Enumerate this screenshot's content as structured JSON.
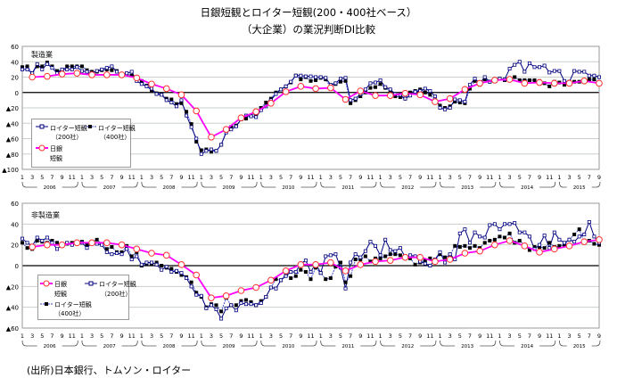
{
  "title_line1": "日銀短観とロイター短観(200・400社ベース）",
  "title_line2": "（大企業）の業況判断DI比較",
  "source": "(出所)日本銀行、トムソン・ロイター",
  "colors": {
    "reuters200": "#000080",
    "reuters400": "#000000",
    "reuters400_line": "#3040d0",
    "tankan": "#ff00ff",
    "tankan_marker": "#ff3030",
    "grid": "#c8d0c8"
  },
  "chart_data": [
    {
      "type": "line",
      "panel_label": "製造業",
      "ylim": [
        -100,
        60
      ],
      "yticks": [
        60,
        40,
        20,
        0,
        -20,
        -40,
        -60,
        -80,
        -100
      ],
      "ytick_labels": [
        "60",
        "40",
        "20",
        "0",
        "▲20",
        "▲40",
        "▲60",
        "▲80",
        "▲100"
      ],
      "legend": {
        "r200_a": "ロイター短観",
        "r200_b": "（200社）",
        "r400_a": "ロイター短観",
        "r400_b": "（400社）",
        "tankan_a": "日銀",
        "tankan_b": "短観"
      },
      "x_start": "2006-01",
      "x_end": "2015-09",
      "month_ticks": [
        "1",
        "3",
        "5",
        "7",
        "9",
        "11"
      ],
      "years": [
        "2006",
        "2007",
        "2008",
        "2009",
        "2010",
        "2011",
        "2012",
        "2013",
        "2014",
        "2015"
      ],
      "series": [
        {
          "name": "ロイター短観（200社）",
          "frequency": "monthly",
          "values": [
            30,
            30,
            25,
            37,
            30,
            37,
            32,
            25,
            30,
            30,
            30,
            33,
            28,
            27,
            25,
            28,
            30,
            32,
            34,
            27,
            22,
            25,
            27,
            15,
            11,
            8,
            5,
            -2,
            -3,
            -10,
            -13,
            -18,
            -10,
            -30,
            -45,
            -60,
            -80,
            -76,
            -74,
            -76,
            -68,
            -52,
            -48,
            -44,
            -35,
            -30,
            -31,
            -32,
            -23,
            -18,
            -10,
            -2,
            4,
            8,
            14,
            22,
            22,
            21,
            21,
            20,
            20,
            19,
            10,
            12,
            18,
            19,
            -10,
            -8,
            -2,
            4,
            12,
            13,
            16,
            7,
            4,
            -2,
            -3,
            -8,
            -4,
            1,
            2,
            5,
            2,
            -5,
            -20,
            -22,
            -20,
            -9,
            -10,
            -12,
            10,
            18,
            12,
            20,
            14,
            16,
            18,
            17,
            31,
            36,
            40,
            27,
            38,
            33,
            33,
            35,
            26,
            28,
            28,
            15,
            14,
            28,
            27,
            27,
            22,
            22,
            20
          ]
        },
        {
          "name": "ロイター短観（400社）",
          "frequency": "monthly",
          "values": [
            33,
            34,
            25,
            34,
            34,
            39,
            34,
            28,
            29,
            34,
            34,
            34,
            34,
            29,
            27,
            27,
            29,
            30,
            29,
            28,
            23,
            24,
            22,
            18,
            15,
            9,
            2,
            -1,
            -2,
            -8,
            -9,
            -15,
            -14,
            -25,
            -41,
            -64,
            -75,
            -74,
            -77,
            -76,
            -68,
            -50,
            -45,
            -43,
            -35,
            -34,
            -30,
            -28,
            -20,
            -13,
            -8,
            0,
            4,
            8,
            13,
            22,
            17,
            20,
            15,
            16,
            19,
            17,
            7,
            11,
            14,
            15,
            -14,
            -10,
            -5,
            0,
            6,
            7,
            11,
            6,
            2,
            -5,
            -6,
            -8,
            0,
            2,
            4,
            0,
            -3,
            -10,
            -17,
            -20,
            -18,
            -12,
            -13,
            -14,
            5,
            15,
            10,
            17,
            14,
            16,
            18,
            16,
            16,
            20,
            16,
            16,
            16,
            16,
            15,
            12,
            8,
            14,
            13,
            10,
            13,
            14,
            14,
            16,
            17,
            17,
            12
          ]
        },
        {
          "name": "日銀短観",
          "frequency": "quarterly",
          "values": [
            20,
            21,
            24,
            25,
            23,
            23,
            23,
            19,
            11,
            5,
            -3,
            -24,
            -58,
            -48,
            -33,
            -25,
            -14,
            1,
            8,
            5,
            6,
            -9,
            2,
            -4,
            -4,
            -1,
            -3,
            -12,
            -8,
            4,
            12,
            16,
            17,
            12,
            13,
            12,
            12,
            15,
            12
          ]
        }
      ]
    },
    {
      "type": "line",
      "panel_label": "非製造業",
      "ylim": [
        -60,
        60
      ],
      "yticks": [
        60,
        40,
        20,
        0,
        -20,
        -40,
        -60
      ],
      "ytick_labels": [
        "60",
        "40",
        "20",
        "0",
        "▲20",
        "▲40",
        "▲60"
      ],
      "legend": {
        "tankan_a": "日銀",
        "tankan_b": "短観",
        "r200_a": "ロイター短観",
        "r200_b": "（200社）",
        "r400_a": "ロイター短観",
        "r400_b": "（400社）"
      },
      "x_start": "2006-01",
      "x_end": "2015-09",
      "month_ticks": [
        "1",
        "3",
        "5",
        "7",
        "9",
        "11"
      ],
      "years": [
        "2006",
        "2007",
        "2008",
        "2009",
        "2010",
        "2011",
        "2012",
        "2013",
        "2014",
        "2015"
      ],
      "series": [
        {
          "name": "ロイター短観（200社）",
          "frequency": "monthly",
          "values": [
            26,
            22,
            19,
            27,
            24,
            27,
            22,
            16,
            20,
            22,
            20,
            22,
            22,
            17,
            22,
            21,
            20,
            13,
            11,
            12,
            11,
            16,
            6,
            9,
            1,
            3,
            3,
            1,
            -4,
            -1,
            -6,
            -5,
            -7,
            -12,
            -20,
            -28,
            -29,
            -41,
            -38,
            -42,
            -51,
            -41,
            -38,
            -43,
            -36,
            -37,
            -37,
            -38,
            -36,
            -30,
            -21,
            -22,
            -14,
            -10,
            -6,
            -6,
            2,
            5,
            -6,
            2,
            -7,
            9,
            10,
            11,
            -2,
            -22,
            3,
            11,
            8,
            14,
            23,
            19,
            10,
            25,
            15,
            14,
            17,
            8,
            10,
            9,
            4,
            2,
            0,
            6,
            13,
            3,
            11,
            6,
            31,
            35,
            22,
            32,
            28,
            27,
            39,
            40,
            35,
            40,
            40,
            41,
            32,
            32,
            28,
            16,
            20,
            29,
            17,
            32,
            25,
            22,
            25,
            23,
            28,
            30,
            42,
            28,
            22
          ]
        },
        {
          "name": "ロイター短観（400社）",
          "frequency": "monthly",
          "values": [
            22,
            17,
            16,
            24,
            23,
            22,
            24,
            22,
            20,
            21,
            22,
            21,
            23,
            20,
            23,
            25,
            21,
            16,
            18,
            13,
            13,
            19,
            9,
            13,
            0,
            2,
            2,
            3,
            0,
            -2,
            -3,
            -6,
            -9,
            -11,
            -16,
            -26,
            -30,
            -40,
            -37,
            -38,
            -44,
            -31,
            -38,
            -38,
            -34,
            -33,
            -35,
            -38,
            -34,
            -30,
            -21,
            -13,
            -14,
            -8,
            -12,
            -10,
            -4,
            -6,
            -13,
            -2,
            -7,
            -13,
            -12,
            -1,
            3,
            -16,
            -10,
            6,
            6,
            9,
            4,
            7,
            7,
            9,
            11,
            11,
            10,
            9,
            7,
            1,
            3,
            5,
            7,
            5,
            11,
            8,
            10,
            19,
            18,
            19,
            17,
            19,
            17,
            22,
            24,
            25,
            28,
            27,
            31,
            22,
            24,
            20,
            15,
            18,
            18,
            17,
            22,
            18,
            19,
            20,
            25,
            30,
            35,
            23,
            24,
            21,
            20
          ]
        },
        {
          "name": "日銀短観",
          "frequency": "quarterly",
          "values": [
            18,
            20,
            20,
            22,
            22,
            22,
            20,
            16,
            12,
            10,
            1,
            -9,
            -31,
            -29,
            -24,
            -21,
            -14,
            -5,
            1,
            1,
            3,
            -5,
            1,
            4,
            5,
            8,
            8,
            4,
            6,
            12,
            14,
            20,
            24,
            19,
            13,
            16,
            19,
            23,
            25
          ]
        }
      ]
    }
  ]
}
